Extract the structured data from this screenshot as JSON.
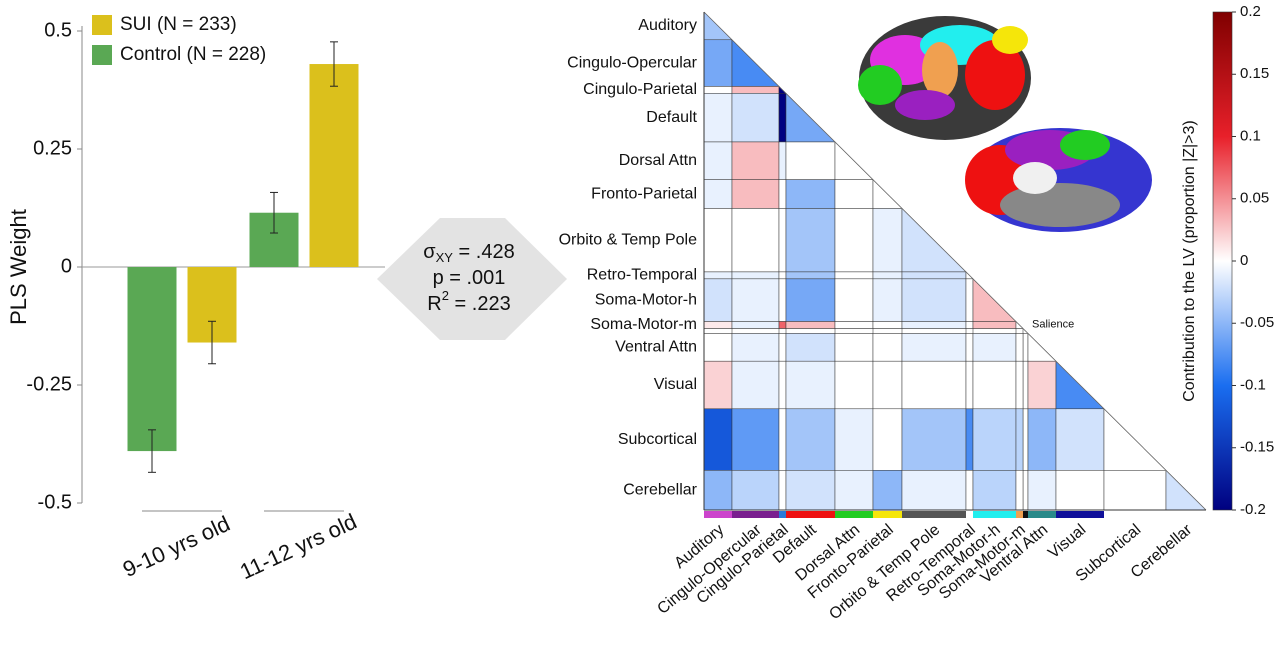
{
  "chart_data": [
    {
      "type": "bar",
      "ylabel": "PLS Weight",
      "categories": [
        "9-10 yrs old",
        "11-12 yrs old"
      ],
      "series": [
        {
          "name": "SUI (N = 233)",
          "color": "#dbc01c",
          "values": [
            -0.16,
            0.43
          ],
          "errors": [
            0.045,
            0.047
          ]
        },
        {
          "name": "Control (N = 228)",
          "color": "#5aa854",
          "values": [
            -0.39,
            0.115
          ],
          "errors": [
            0.045,
            0.043
          ]
        }
      ],
      "ylim": [
        -0.5,
        0.5
      ],
      "yticks": [
        -0.5,
        -0.25,
        0,
        0.25,
        0.5
      ],
      "annotations": [
        {
          "symbol": "σ",
          "sub": "XY",
          "text": " = .428"
        },
        {
          "symbol": "p",
          "text": " = .001"
        },
        {
          "symbol": "R",
          "sup": "2",
          "text": " = .223"
        }
      ]
    },
    {
      "type": "heatmap",
      "categories": [
        "Auditory",
        "Cingulo-Opercular",
        "Cingulo-Parietal",
        "Default",
        "Dorsal Attn",
        "Fronto-Parietal",
        "Orbito & Temp Pole",
        "Retro-Temporal",
        "Soma-Motor-h",
        "Soma-Motor-m",
        "Ventral Attn",
        "Visual",
        "Subcortical",
        "Cerebellar"
      ],
      "colors": [
        "#cc44cc",
        "#7a1f8f",
        "#2a7ad8",
        "#ee1111",
        "#22cc22",
        "#f5e60a",
        "#555555",
        "#ffffff",
        "#22eeee",
        "#f0a050",
        "#2a8a8a",
        "#10109a",
        "#ffffff",
        "#ffffff"
      ],
      "values": [
        [
          -0.04
        ],
        [
          -0.06,
          -0.08
        ],
        [
          0,
          0.03,
          -0.2
        ],
        [
          -0.01,
          -0.02,
          -0.2,
          -0.06
        ],
        [
          -0.01,
          0.03,
          -0.01,
          0,
          0
        ],
        [
          -0.01,
          0.03,
          0,
          -0.05,
          0,
          0
        ],
        [
          0,
          0,
          0,
          -0.04,
          0,
          -0.01,
          -0.02
        ],
        [
          -0.01,
          -0.01,
          0,
          -0.04,
          0,
          -0.01,
          -0.02,
          0
        ],
        [
          -0.02,
          -0.01,
          0,
          -0.06,
          0,
          -0.01,
          -0.02,
          0,
          0.03
        ],
        [
          0.01,
          -0.01,
          0.07,
          0.03,
          0,
          0,
          -0.01,
          0,
          0.03,
          0
        ],
        [
          0,
          -0.01,
          0,
          -0.02,
          0,
          0,
          -0.01,
          0,
          -0.01,
          0,
          0
        ],
        [
          0.02,
          -0.01,
          0,
          -0.01,
          0,
          0,
          0,
          0,
          0,
          0,
          0.02,
          -0.08
        ],
        [
          -0.12,
          -0.07,
          0,
          -0.04,
          -0.01,
          0,
          -0.04,
          -0.08,
          -0.03,
          -0.03,
          -0.05,
          -0.02,
          0
        ],
        [
          -0.05,
          -0.03,
          0,
          -0.02,
          -0.01,
          -0.05,
          -0.01,
          0,
          -0.03,
          0,
          -0.01,
          0,
          0,
          -0.02
        ]
      ],
      "inset_network": {
        "name": "Salience",
        "color": "#111111"
      },
      "colorbar": {
        "label": "Contribution to the LV (proportion |Z|>3)",
        "clim": [
          -0.2,
          0.2
        ],
        "ticks": [
          -0.2,
          -0.15,
          -0.1,
          -0.05,
          0,
          0.05,
          0.1,
          0.15,
          0.2
        ]
      }
    }
  ]
}
